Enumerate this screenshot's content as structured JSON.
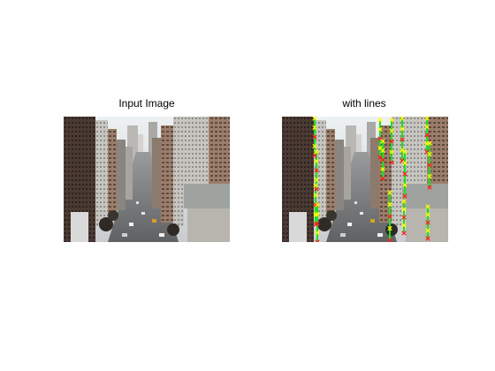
{
  "panels": {
    "left": {
      "title": "Input Image"
    },
    "right": {
      "title": "with lines"
    }
  },
  "colors": {
    "line": "#22dd22",
    "endpoint_start": "#ffff00",
    "endpoint_end": "#ff2020",
    "sky": "#e8ecef",
    "road": "#6c6e70",
    "building_dark": "#4b3b35",
    "building_light": "#c9c7c2"
  }
}
